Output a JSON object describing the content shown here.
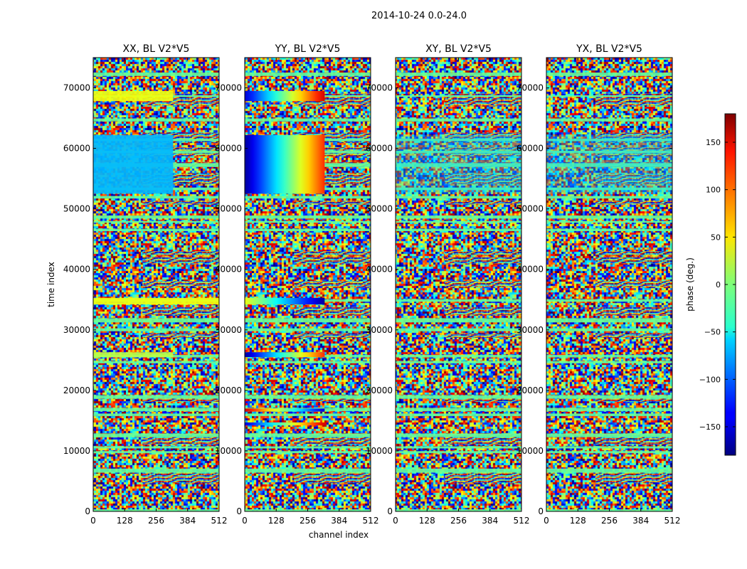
{
  "figure": {
    "suptitle": "2014-10-24 0.0-24.0",
    "xlabel": "channel index",
    "ylabel": "time index",
    "colorbar_label": "phase (deg.)"
  },
  "chart_data": {
    "type": "heatmap",
    "suptitle": "2014-10-24 0.0-24.0",
    "xlabel": "channel index",
    "ylabel": "time index",
    "xlim": [
      0,
      512
    ],
    "ylim": [
      0,
      75000
    ],
    "xticks": [
      0,
      128,
      256,
      384,
      512
    ],
    "yticks": [
      0,
      10000,
      20000,
      30000,
      40000,
      50000,
      60000,
      70000
    ],
    "colormap": "jet",
    "color_range": [
      -180,
      180
    ],
    "colorbar": {
      "label": "phase (deg.)",
      "ticks": [
        -150,
        -100,
        -50,
        0,
        50,
        100,
        150
      ],
      "placement": "right"
    },
    "panels": [
      {
        "title": "XX, BL V2*V5",
        "features": [
          {
            "time": [
              52500,
              62200
            ],
            "channels": [
              0,
              325
            ],
            "phase": -70,
            "desc": "coherent blue/cyan block"
          },
          {
            "time": [
              67800,
              69500
            ],
            "channels": [
              0,
              325
            ],
            "phase": 40,
            "desc": "yellow/green band"
          },
          {
            "time": [
              34200,
              35300
            ],
            "channels": [
              0,
              512
            ],
            "phase": 40,
            "desc": "yellow band"
          },
          {
            "time": [
              25500,
              26300
            ],
            "channels": [
              0,
              325
            ],
            "phase": 20,
            "desc": "green band"
          }
        ]
      },
      {
        "title": "YY, BL V2*V5",
        "features": [
          {
            "time": [
              52500,
              62200
            ],
            "channels": [
              0,
              325
            ],
            "phase_start": -170,
            "phase_end": 120,
            "desc": "phase ramp blue to red"
          },
          {
            "time": [
              67800,
              69500
            ],
            "channels": [
              0,
              325
            ],
            "phase_start": -150,
            "phase_end": 150,
            "desc": "phase ramp"
          },
          {
            "time": [
              34200,
              35300
            ],
            "channels": [
              0,
              325
            ],
            "phase_start": 40,
            "phase_end": -170,
            "desc": "phase ramp"
          },
          {
            "time": [
              25500,
              26300
            ],
            "channels": [
              0,
              325
            ],
            "phase_start": -170,
            "phase_end": 120,
            "desc": "phase ramp"
          },
          {
            "time": [
              14200,
              14700
            ],
            "channels": [
              0,
              325
            ],
            "phase_start": -150,
            "phase_end": 150,
            "desc": "phase ramp"
          },
          {
            "time": [
              16500,
              17000
            ],
            "channels": [
              0,
              325
            ],
            "phase_start": 150,
            "phase_end": -150,
            "desc": "phase ramp"
          }
        ]
      },
      {
        "title": "XY, BL V2*V5",
        "features": [
          {
            "time": [
              52500,
              62200
            ],
            "channels": [
              0,
              512
            ],
            "phase": -60,
            "desc": "faint noisy blue region"
          }
        ]
      },
      {
        "title": "YX, BL V2*V5",
        "features": [
          {
            "time": [
              52500,
              62200
            ],
            "channels": [
              0,
              512
            ],
            "phase": -60,
            "desc": "faint noisy blue region"
          }
        ]
      }
    ]
  }
}
